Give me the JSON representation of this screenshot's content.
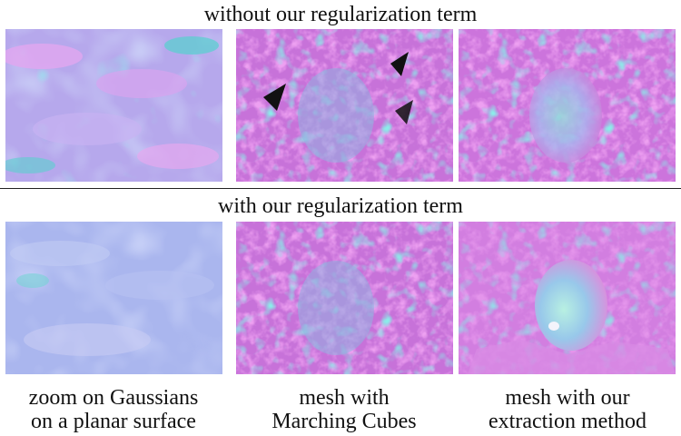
{
  "rows": [
    {
      "title": "without our regularization term"
    },
    {
      "title": "with our regularization term"
    }
  ],
  "columns": [
    {
      "caption_line1": "zoom on Gaussians",
      "caption_line2": "on a planar surface"
    },
    {
      "caption_line1": "mesh with",
      "caption_line2": "Marching Cubes"
    },
    {
      "caption_line1": "mesh with our",
      "caption_line2": "extraction method"
    }
  ],
  "colors": {
    "normal_pink": "#d861e0",
    "normal_cyan": "#43d6d0",
    "normal_blue": "#9aa6f0",
    "normal_lavender": "#b9b7ec",
    "hole_black": "#111111"
  }
}
